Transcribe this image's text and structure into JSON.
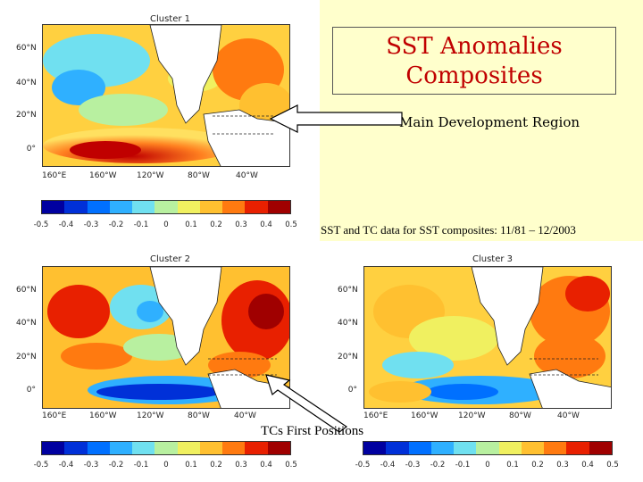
{
  "header": {
    "title_line1": "SST Anomalies",
    "title_line2": "Composites"
  },
  "annotations": {
    "mdr_label": "Main Development Region",
    "data_note": "SST and TC data for SST composites: 11/81 – 12/2003",
    "tc_label": "TCs First Positions"
  },
  "axes": {
    "lat_labels": [
      "60°N",
      "40°N",
      "20°N",
      "0°"
    ],
    "lon_labels": [
      "160°E",
      "160°W",
      "120°W",
      "80°W",
      "40°W"
    ]
  },
  "colorbar": {
    "ticks": [
      "-0.5",
      "-0.4",
      "-0.3",
      "-0.2",
      "-0.1",
      "0",
      "0.1",
      "0.2",
      "0.3",
      "0.4",
      "0.5"
    ],
    "colors": [
      "#0000a0",
      "#0030d8",
      "#0070ff",
      "#2fb0ff",
      "#70e0f0",
      "#b8f0a0",
      "#f0f060",
      "#ffc030",
      "#ff7a10",
      "#e82000",
      "#a00000"
    ]
  },
  "panels": [
    {
      "title": "Cluster 1"
    },
    {
      "title": "Cluster 2"
    },
    {
      "title": "Cluster 3"
    }
  ],
  "colors": {
    "title_text": "#c00000",
    "panel_background": "#ffffcc"
  }
}
